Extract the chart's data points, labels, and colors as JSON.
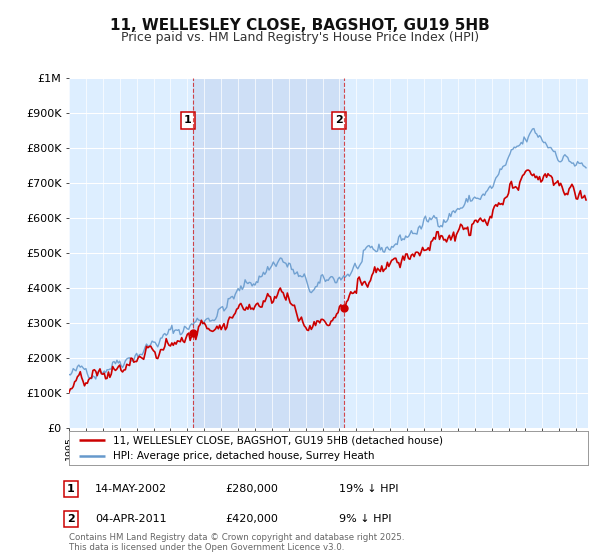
{
  "title": "11, WELLESLEY CLOSE, BAGSHOT, GU19 5HB",
  "subtitle": "Price paid vs. HM Land Registry's House Price Index (HPI)",
  "ylim": [
    0,
    1000000
  ],
  "yticks": [
    0,
    100000,
    200000,
    300000,
    400000,
    500000,
    600000,
    700000,
    800000,
    900000,
    1000000
  ],
  "ytick_labels": [
    "£0",
    "£100K",
    "£200K",
    "£300K",
    "£400K",
    "£500K",
    "£600K",
    "£700K",
    "£800K",
    "£900K",
    "£1M"
  ],
  "x_start_year": 1995,
  "x_end_year": 2025,
  "hpi_color": "#6699cc",
  "price_color": "#cc0000",
  "sale1_year": 2002.37,
  "sale1_price": 280000,
  "sale1_label": "1",
  "sale1_date": "14-MAY-2002",
  "sale1_pct": "19% ↓ HPI",
  "sale2_year": 2011.25,
  "sale2_price": 420000,
  "sale2_label": "2",
  "sale2_date": "04-APR-2011",
  "sale2_pct": "9% ↓ HPI",
  "legend_line1": "11, WELLESLEY CLOSE, BAGSHOT, GU19 5HB (detached house)",
  "legend_line2": "HPI: Average price, detached house, Surrey Heath",
  "footnote": "Contains HM Land Registry data © Crown copyright and database right 2025.\nThis data is licensed under the Open Government Licence v3.0.",
  "chart_bg": "#ddeeff",
  "fig_bg": "#ffffff",
  "grid_color": "#ffffff",
  "shade_color": "#ccddf5",
  "title_fontsize": 11,
  "subtitle_fontsize": 9,
  "tick_fontsize": 8
}
